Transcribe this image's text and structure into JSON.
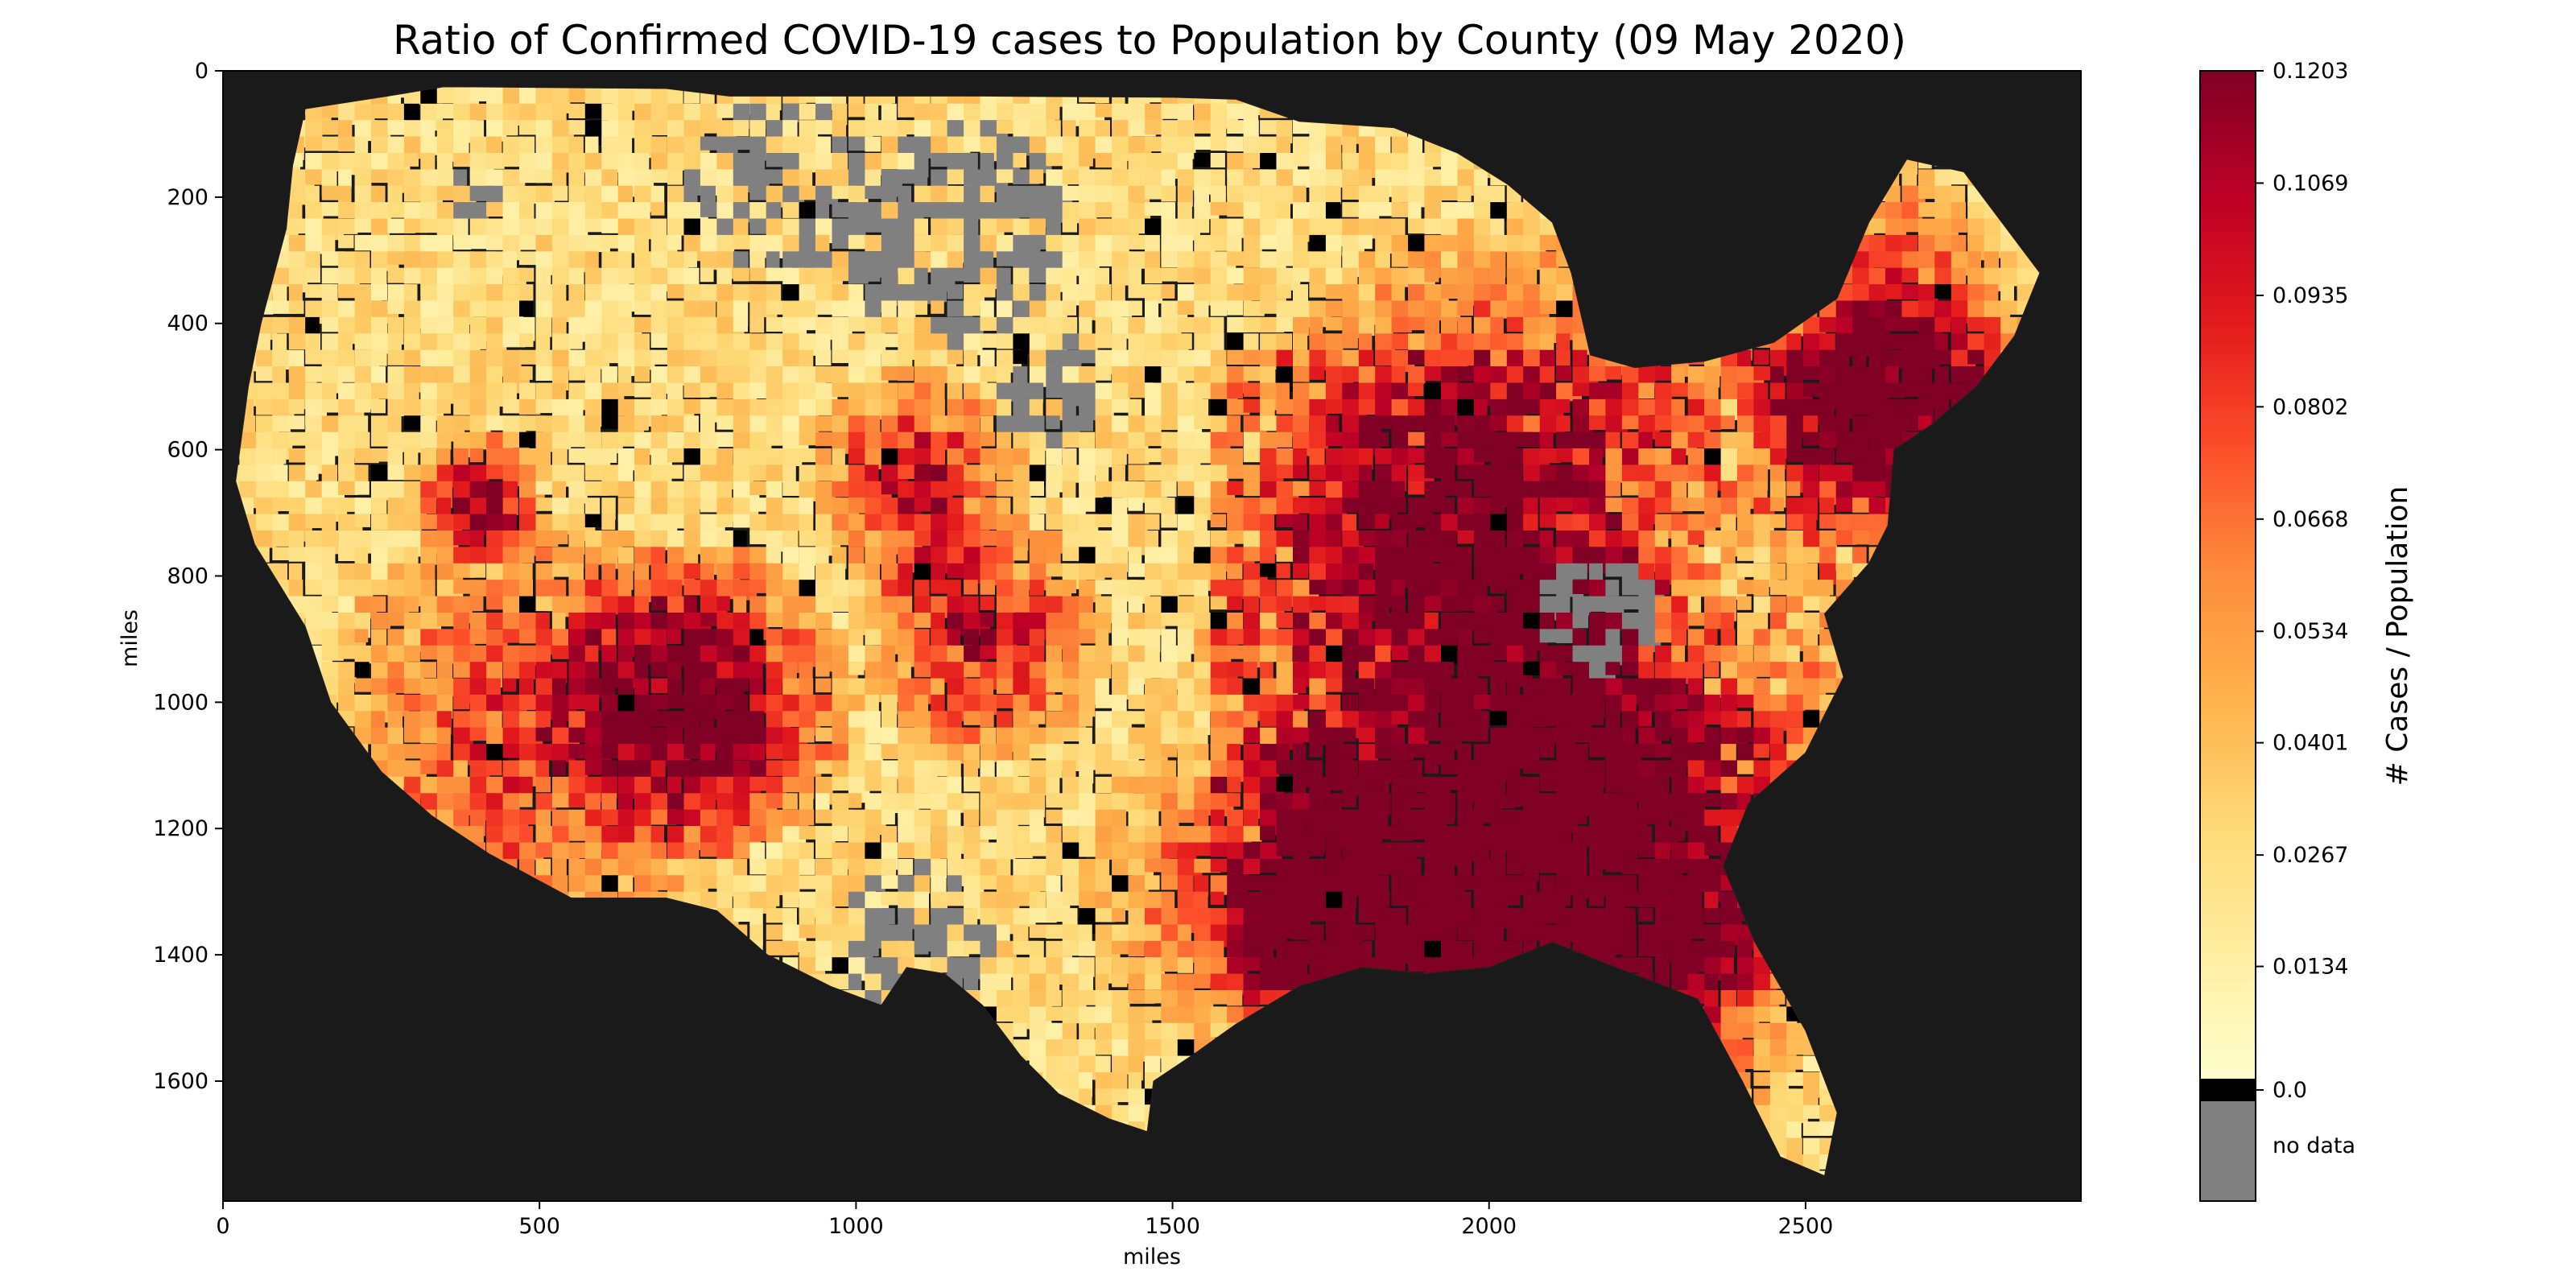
{
  "title": "Ratio of Confirmed COVID-19 cases to Population by County (09 May 2020)",
  "map": {
    "xlabel": "miles",
    "ylabel": "miles",
    "xlim": [
      0,
      2935
    ],
    "ylim": [
      1790,
      0
    ],
    "xticks": [
      "0",
      "500",
      "1000",
      "1500",
      "2000",
      "2500"
    ],
    "yticks": [
      "0",
      "200",
      "400",
      "600",
      "800",
      "1000",
      "1200",
      "1400",
      "1600"
    ],
    "background_color": "#1a1a1a",
    "no_data_color": "#808080",
    "zero_color": "#000000",
    "colormap": "YlOrRd"
  },
  "colorbar": {
    "label": "# Cases / Population",
    "ticks": [
      "0.1203",
      "0.1069",
      "0.0935",
      "0.0802",
      "0.0668",
      "0.0534",
      "0.0401",
      "0.0267",
      "0.0134",
      "0.0"
    ],
    "no_data_label": "no data",
    "min": 0.0,
    "max": 0.1203,
    "stops": [
      "#ffffcc",
      "#ffeda0",
      "#fed976",
      "#feb24c",
      "#fd8d3c",
      "#fc4e2a",
      "#e31a1c",
      "#bd0026",
      "#800026"
    ]
  }
}
